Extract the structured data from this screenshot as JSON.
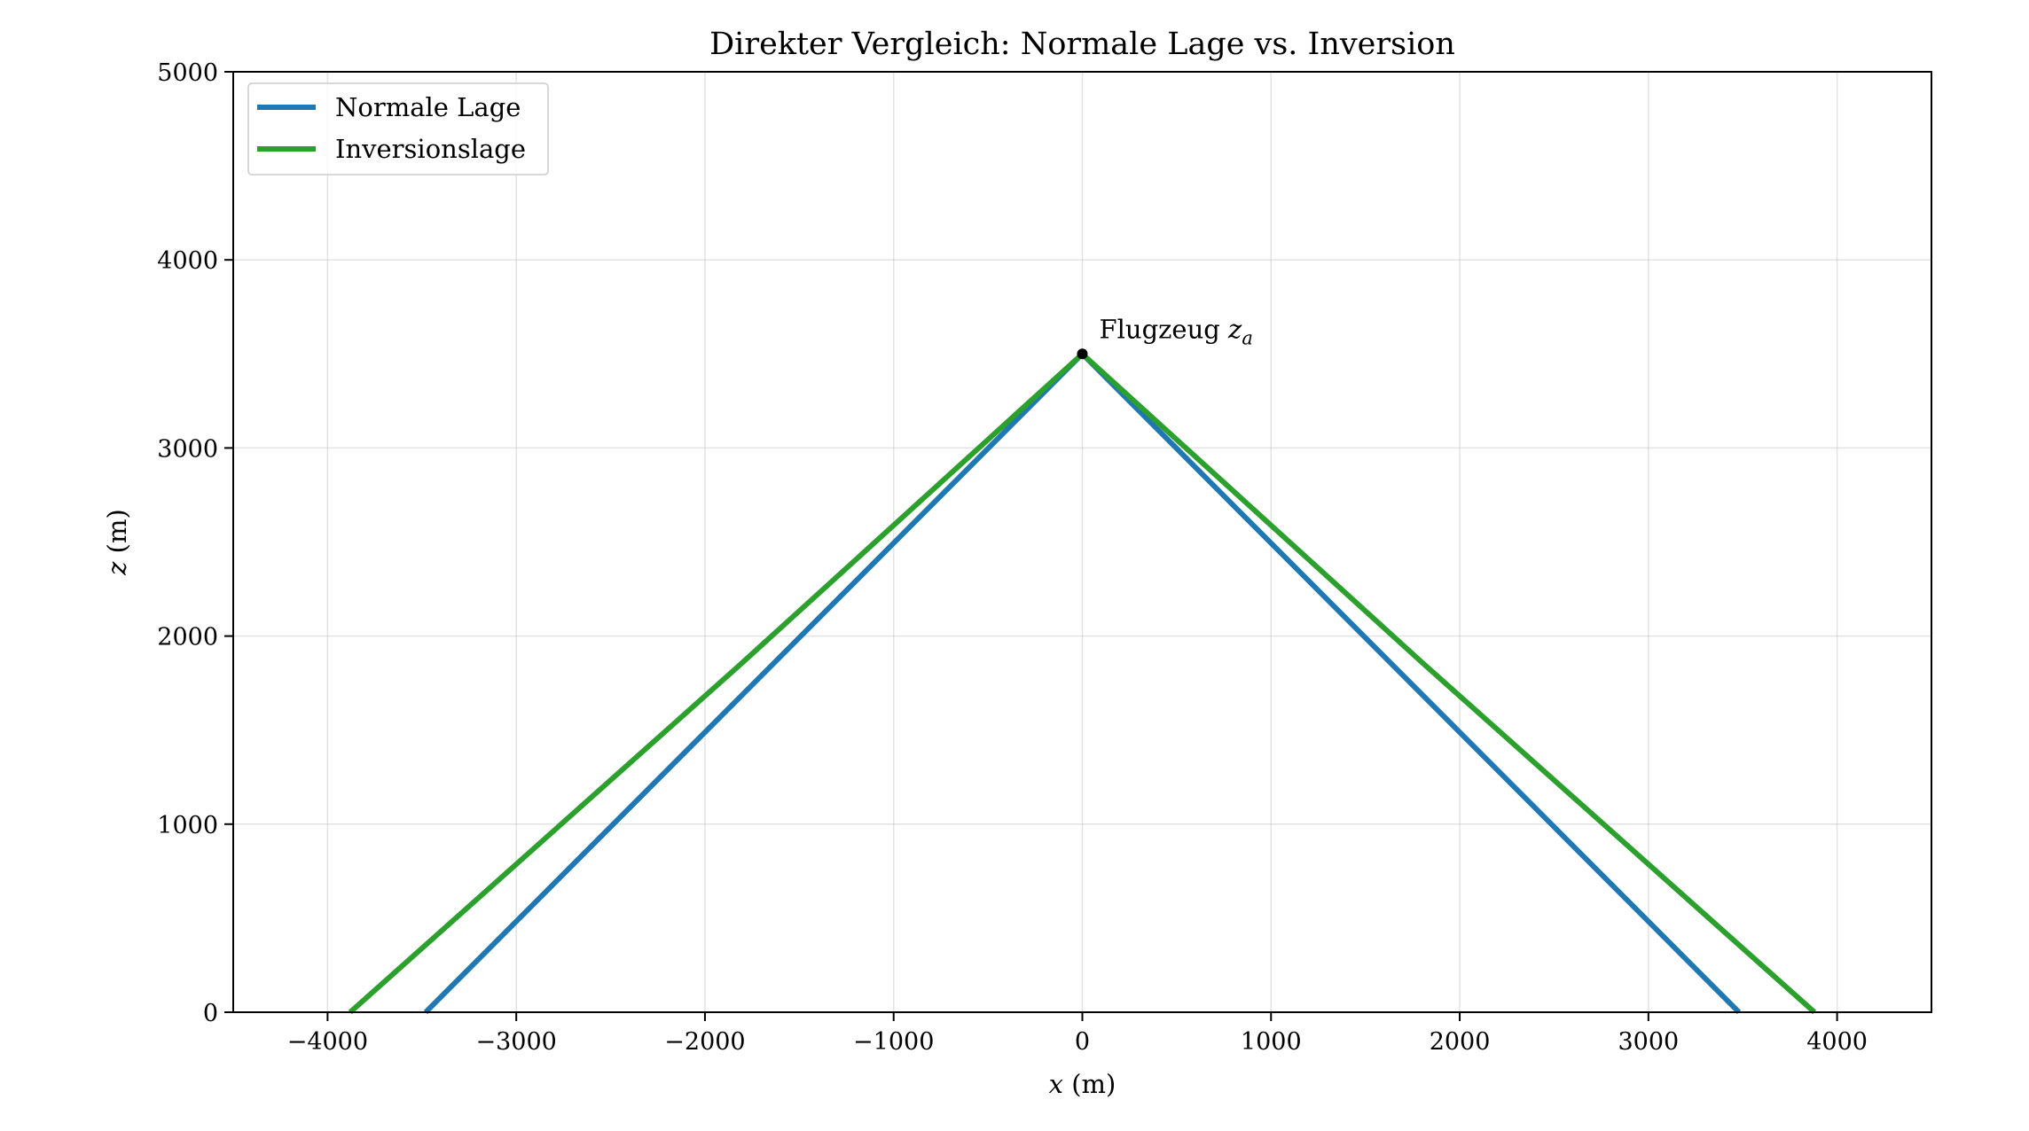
{
  "chart_data": {
    "type": "line",
    "title": "Direkter Vergleich: Normale Lage vs. Inversion",
    "xlabel": {
      "var": "x",
      "unit": "(m)"
    },
    "ylabel": {
      "var": "z",
      "unit": "(m)"
    },
    "xlim": [
      -4500,
      4500
    ],
    "ylim": [
      0,
      5000
    ],
    "xticks": [
      -4000,
      -3000,
      -2000,
      -1000,
      0,
      1000,
      2000,
      3000,
      4000
    ],
    "xtick_labels": [
      "−4000",
      "−3000",
      "−2000",
      "−1000",
      "0",
      "1000",
      "2000",
      "3000",
      "4000"
    ],
    "yticks": [
      0,
      1000,
      2000,
      3000,
      4000,
      5000
    ],
    "ytick_labels": [
      "0",
      "1000",
      "2000",
      "3000",
      "4000",
      "5000"
    ],
    "grid": true,
    "legend_position": "top-left",
    "series": [
      {
        "name": "Normale Lage",
        "color": "#1f77b4",
        "x": [
          -3480,
          0,
          3480
        ],
        "y": [
          0,
          3500,
          0
        ]
      },
      {
        "name": "Inversionslage",
        "color": "#2ca02c",
        "x": [
          -3880,
          -1800,
          0,
          1800,
          3880
        ],
        "y": [
          0,
          1860,
          3500,
          1860,
          0
        ]
      }
    ],
    "annotation": {
      "point": [
        0,
        3500
      ],
      "text": "Flugzeug ",
      "math_var": "z",
      "math_sub": "a"
    }
  }
}
